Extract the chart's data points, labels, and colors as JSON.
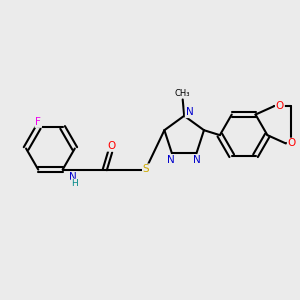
{
  "background_color": "#ebebeb",
  "bond_color": "#000000",
  "atom_colors": {
    "N": "#0000cc",
    "O": "#ff0000",
    "S": "#ccaa00",
    "F": "#ee00ee",
    "C": "#000000",
    "H": "#008888"
  },
  "figsize": [
    3.0,
    3.0
  ],
  "dpi": 100,
  "bond_lw": 1.5,
  "font_size": 7.2
}
